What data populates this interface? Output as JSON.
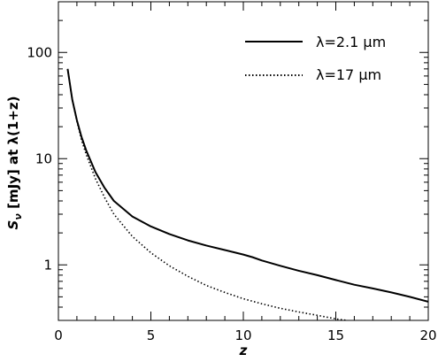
{
  "chart_data": {
    "type": "line",
    "xlabel": "z",
    "ylabel": "Sν [mJy] at λ(1+z)",
    "ylabel_parts": {
      "sym": "S",
      "sub": "ν",
      "rest": " [mJy] at λ(1+z)"
    },
    "xlim": [
      0,
      20
    ],
    "ylim": [
      0.3,
      300
    ],
    "y_scale": "log",
    "grid": false,
    "legend_position": "top-right",
    "x_ticks": [
      0,
      5,
      10,
      15,
      20
    ],
    "x_tick_labels": [
      "0",
      "5",
      "10",
      "15",
      "20"
    ],
    "y_ticks": [
      1,
      10,
      100
    ],
    "y_tick_labels": [
      "1",
      "10",
      "100"
    ],
    "series": [
      {
        "name": "λ=2.1 μm",
        "style": "solid",
        "x": [
          0.5,
          0.75,
          1,
          1.25,
          1.5,
          2,
          2.5,
          3,
          4,
          5,
          6,
          7,
          8,
          9,
          10,
          10.5,
          11,
          12,
          13,
          14,
          15,
          16,
          17,
          18,
          19,
          20
        ],
        "y": [
          70,
          36,
          23,
          16,
          12,
          7.5,
          5.3,
          4.0,
          2.85,
          2.3,
          1.95,
          1.7,
          1.52,
          1.38,
          1.25,
          1.18,
          1.1,
          0.98,
          0.88,
          0.8,
          0.72,
          0.65,
          0.6,
          0.55,
          0.5,
          0.45
        ]
      },
      {
        "name": "λ=17 μm",
        "style": "dotted",
        "x": [
          0.5,
          0.75,
          1,
          1.25,
          1.5,
          2,
          2.5,
          3,
          4,
          5,
          6,
          7,
          8,
          9,
          10,
          11,
          12,
          13,
          14,
          15,
          15.6
        ],
        "y": [
          70,
          36,
          22.5,
          15,
          11,
          6.5,
          4.3,
          3.0,
          1.85,
          1.3,
          0.98,
          0.78,
          0.64,
          0.55,
          0.48,
          0.43,
          0.39,
          0.36,
          0.335,
          0.31,
          0.3
        ]
      }
    ]
  }
}
